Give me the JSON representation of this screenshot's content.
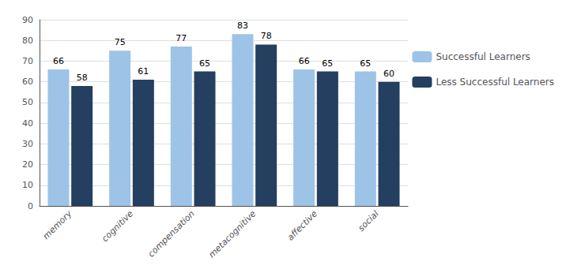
{
  "chart_data": {
    "type": "bar",
    "categories": [
      "memory",
      "cognitive",
      "compensation",
      "metacognitive",
      "affective",
      "social"
    ],
    "series": [
      {
        "name": "Successful Learners",
        "color": "#9DC3E6",
        "values": [
          66,
          75,
          77,
          83,
          66,
          65
        ]
      },
      {
        "name": "Less Successful Learners",
        "color": "#243F60",
        "values": [
          58,
          61,
          65,
          78,
          65,
          60
        ]
      }
    ],
    "ylim": [
      0,
      90
    ],
    "yticks": [
      0,
      10,
      20,
      30,
      40,
      50,
      60,
      70,
      80,
      90
    ],
    "grid": true,
    "legend": "right",
    "data_labels": true
  }
}
